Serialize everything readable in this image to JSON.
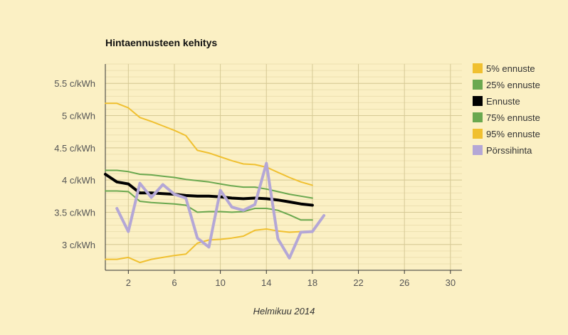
{
  "chart_data": {
    "type": "line",
    "title": "Hintaennusteen kehitys",
    "xlabel": "Helmikuu 2014",
    "ylabel": "",
    "xlim": [
      0,
      31
    ],
    "ylim": [
      2.6,
      5.8
    ],
    "x_ticks": [
      2,
      6,
      10,
      14,
      18,
      22,
      26,
      30
    ],
    "y_ticks": [
      {
        "value": 3.0,
        "label": "3 c/kWh"
      },
      {
        "value": 3.5,
        "label": "3.5 c/kWh"
      },
      {
        "value": 4.0,
        "label": "4 c/kWh"
      },
      {
        "value": 4.5,
        "label": "4.5 c/kWh"
      },
      {
        "value": 5.0,
        "label": "5 c/kWh"
      },
      {
        "value": 5.5,
        "label": "5.5 c/kWh"
      }
    ],
    "grid": true,
    "legend_position": "right",
    "series": [
      {
        "name": "5% ennuste",
        "color": "#f0c030",
        "x": [
          0,
          1,
          2,
          3,
          4,
          5,
          6,
          7,
          8,
          9,
          10,
          11,
          12,
          13,
          14,
          15,
          16,
          17,
          18
        ],
        "y": [
          5.19,
          5.19,
          5.12,
          4.97,
          4.91,
          4.84,
          4.77,
          4.69,
          4.46,
          4.42,
          4.36,
          4.3,
          4.25,
          4.24,
          4.2,
          4.12,
          4.04,
          3.97,
          3.92
        ]
      },
      {
        "name": "25% ennuste",
        "color": "#6aa84f",
        "x": [
          0,
          1,
          2,
          3,
          4,
          5,
          6,
          7,
          8,
          9,
          10,
          11,
          12,
          13,
          14,
          15,
          16,
          17,
          18
        ],
        "y": [
          4.15,
          4.15,
          4.13,
          4.09,
          4.08,
          4.06,
          4.04,
          4.01,
          3.99,
          3.97,
          3.94,
          3.91,
          3.89,
          3.89,
          3.86,
          3.82,
          3.78,
          3.75,
          3.72
        ]
      },
      {
        "name": "Ennuste",
        "color": "#000000",
        "x": [
          0,
          1,
          2,
          3,
          4,
          5,
          6,
          7,
          8,
          9,
          10,
          11,
          12,
          13,
          14,
          15,
          16,
          17,
          18
        ],
        "y": [
          4.09,
          3.97,
          3.94,
          3.8,
          3.8,
          3.79,
          3.78,
          3.76,
          3.75,
          3.75,
          3.74,
          3.72,
          3.71,
          3.72,
          3.71,
          3.69,
          3.66,
          3.63,
          3.61
        ]
      },
      {
        "name": "75% ennuste",
        "color": "#6aa84f",
        "x": [
          0,
          1,
          2,
          3,
          4,
          5,
          6,
          7,
          8,
          9,
          10,
          11,
          12,
          13,
          14,
          15,
          16,
          17,
          18
        ],
        "y": [
          3.83,
          3.83,
          3.82,
          3.67,
          3.65,
          3.64,
          3.63,
          3.61,
          3.5,
          3.51,
          3.51,
          3.5,
          3.51,
          3.56,
          3.56,
          3.53,
          3.46,
          3.38,
          3.38
        ]
      },
      {
        "name": "95% ennuste",
        "color": "#f0c030",
        "x": [
          0,
          1,
          2,
          3,
          4,
          5,
          6,
          7,
          8,
          9,
          10,
          11,
          12,
          13,
          14,
          15,
          16,
          17,
          18
        ],
        "y": [
          2.77,
          2.77,
          2.8,
          2.72,
          2.77,
          2.8,
          2.83,
          2.85,
          3.02,
          3.07,
          3.08,
          3.1,
          3.13,
          3.22,
          3.24,
          3.21,
          3.19,
          3.2,
          3.21
        ]
      },
      {
        "name": "Pörssihinta",
        "color": "#b4a7d6",
        "x": [
          1,
          2,
          3,
          4,
          5,
          6,
          7,
          8,
          9,
          10,
          11,
          12,
          13,
          14,
          15,
          16,
          17,
          18,
          19
        ],
        "y": [
          3.56,
          3.2,
          3.95,
          3.73,
          3.93,
          3.78,
          3.72,
          3.1,
          2.96,
          3.84,
          3.58,
          3.53,
          3.62,
          4.26,
          3.09,
          2.79,
          3.19,
          3.2,
          3.45
        ]
      }
    ]
  }
}
